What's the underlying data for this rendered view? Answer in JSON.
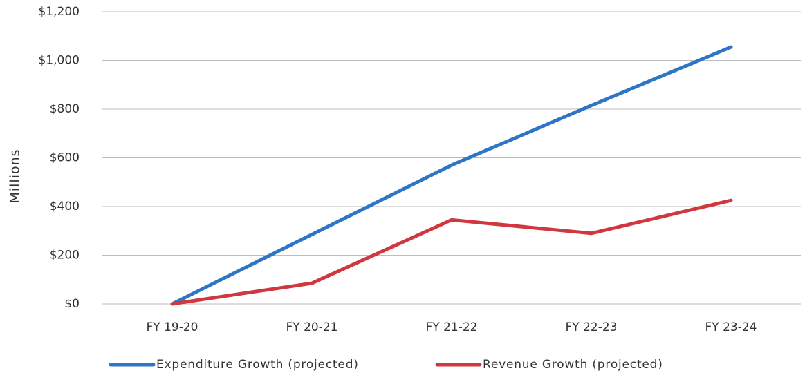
{
  "chart_data": {
    "type": "line",
    "y_label": "Millions",
    "categories": [
      "FY 19-20",
      "FY 20-21",
      "FY 21-22",
      "FY 22-23",
      "FY 23-24"
    ],
    "series": [
      {
        "name": "Expenditure Growth (projected)",
        "color": "#2e75c6",
        "values": [
          0,
          285,
          570,
          815,
          1055
        ]
      },
      {
        "name": "Revenue Growth (projected)",
        "color": "#d0383f",
        "values": [
          0,
          85,
          345,
          290,
          425
        ]
      }
    ],
    "ylim": [
      0,
      1200
    ],
    "yticks": [
      {
        "value": 0,
        "label": "$0"
      },
      {
        "value": 200,
        "label": "$200"
      },
      {
        "value": 400,
        "label": "$400"
      },
      {
        "value": 600,
        "label": "$600"
      },
      {
        "value": 800,
        "label": "$800"
      },
      {
        "value": 1000,
        "label": "$1,000"
      },
      {
        "value": 1200,
        "label": "$1,200"
      }
    ],
    "grid": true,
    "legend": "bottom"
  }
}
